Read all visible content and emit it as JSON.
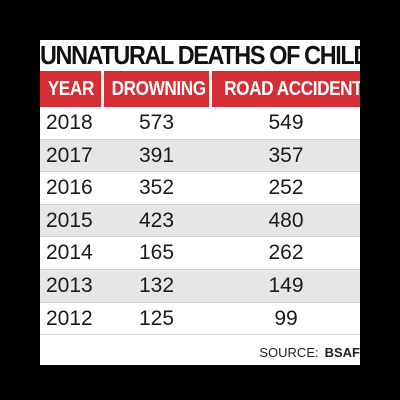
{
  "chart_data": {
    "type": "table",
    "title": "UNNATURAL DEATHS OF CHILDREN",
    "columns": [
      "YEAR",
      "DROWNING",
      "ROAD ACCIDENTS"
    ],
    "rows": [
      {
        "year": "2018",
        "drowning": "573",
        "road_accidents": "549"
      },
      {
        "year": "2017",
        "drowning": "391",
        "road_accidents": "357"
      },
      {
        "year": "2016",
        "drowning": "352",
        "road_accidents": "252"
      },
      {
        "year": "2015",
        "drowning": "423",
        "road_accidents": "480"
      },
      {
        "year": "2014",
        "drowning": "165",
        "road_accidents": "262"
      },
      {
        "year": "2013",
        "drowning": "132",
        "road_accidents": "149"
      },
      {
        "year": "2012",
        "drowning": "125",
        "road_accidents": "99"
      }
    ],
    "source_label": "SOURCE:",
    "source_name": "BSAF"
  },
  "colors": {
    "header_bg": "#d42f36",
    "header_text": "#ffffff",
    "row_alt_bg": "#e6e6e8",
    "background": "#000000"
  }
}
